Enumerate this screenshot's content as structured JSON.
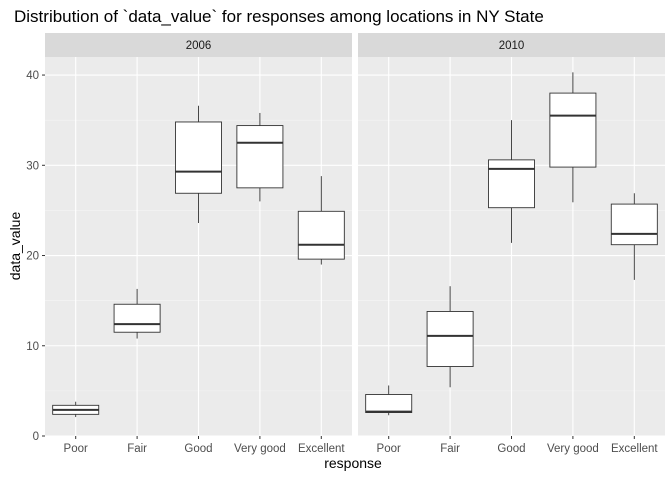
{
  "chart_data": {
    "type": "boxplot",
    "title": "Distribution of `data_value` for responses among locations in NY State",
    "xlabel": "response",
    "ylabel": "data_value",
    "categories": [
      "Poor",
      "Fair",
      "Good",
      "Very good",
      "Excellent"
    ],
    "ylim": [
      0,
      42
    ],
    "yticks": [
      0,
      10,
      20,
      30,
      40
    ],
    "facets": [
      {
        "label": "2006",
        "boxes": [
          {
            "category": "Poor",
            "min": 2.1,
            "q1": 2.4,
            "median": 2.9,
            "q3": 3.4,
            "max": 3.8
          },
          {
            "category": "Fair",
            "min": 10.8,
            "q1": 11.5,
            "median": 12.4,
            "q3": 14.6,
            "max": 16.3
          },
          {
            "category": "Good",
            "min": 23.6,
            "q1": 26.9,
            "median": 29.3,
            "q3": 34.8,
            "max": 36.6
          },
          {
            "category": "Very good",
            "min": 26.0,
            "q1": 27.5,
            "median": 32.5,
            "q3": 34.4,
            "max": 35.8
          },
          {
            "category": "Excellent",
            "min": 19.0,
            "q1": 19.6,
            "median": 21.2,
            "q3": 24.9,
            "max": 28.8
          }
        ]
      },
      {
        "label": "2010",
        "boxes": [
          {
            "category": "Poor",
            "min": 2.3,
            "q1": 2.6,
            "median": 2.7,
            "q3": 4.6,
            "max": 5.6
          },
          {
            "category": "Fair",
            "min": 5.4,
            "q1": 7.7,
            "median": 11.1,
            "q3": 13.8,
            "max": 16.6
          },
          {
            "category": "Good",
            "min": 21.4,
            "q1": 25.3,
            "median": 29.6,
            "q3": 30.6,
            "max": 35.0
          },
          {
            "category": "Very good",
            "min": 25.9,
            "q1": 29.8,
            "median": 35.5,
            "q3": 38.0,
            "max": 40.3
          },
          {
            "category": "Excellent",
            "min": 17.3,
            "q1": 21.2,
            "median": 22.4,
            "q3": 25.7,
            "max": 26.9
          }
        ]
      }
    ],
    "grid": true,
    "colors": {
      "panel_bg": "#ebebeb",
      "strip_bg": "#d9d9d9",
      "grid_major": "#ffffff",
      "box_fill": "#ffffff",
      "box_stroke": "#333333",
      "text": "#000000",
      "axis_text": "#4d4d4d",
      "strip_text": "#1a1a1a"
    }
  }
}
